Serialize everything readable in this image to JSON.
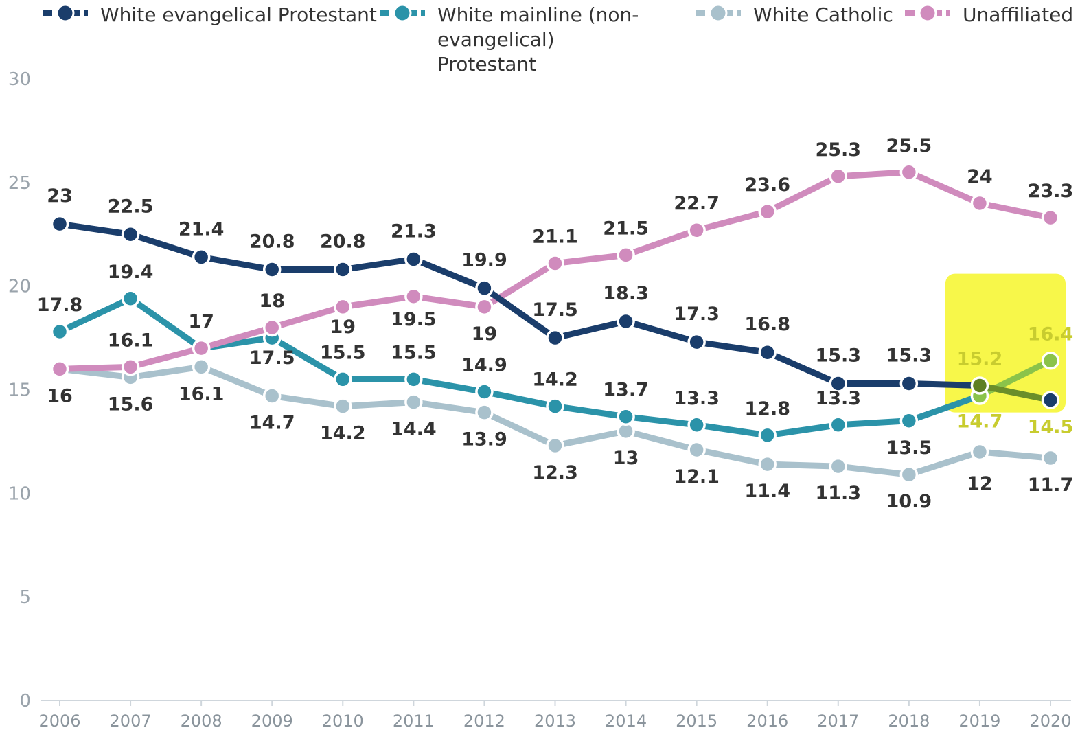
{
  "chart_data": {
    "type": "line",
    "x": [
      "2006",
      "2007",
      "2008",
      "2009",
      "2010",
      "2011",
      "2012",
      "2013",
      "2014",
      "2015",
      "2016",
      "2017",
      "2018",
      "2019",
      "2020"
    ],
    "ylim": [
      0,
      30
    ],
    "yticks": [
      "0",
      "5",
      "10",
      "15",
      "20",
      "25",
      "30"
    ],
    "grid": false,
    "legend_position": "top",
    "series": [
      {
        "name": "White evangelical Protestant",
        "color": "#1a3d6b",
        "values": [
          23,
          22.5,
          21.4,
          20.8,
          20.8,
          21.3,
          19.9,
          17.5,
          18.3,
          17.3,
          16.8,
          15.3,
          15.3,
          15.2,
          14.5
        ],
        "labels": [
          "23",
          "22.5",
          "21.4",
          "20.8",
          "20.8",
          "21.3",
          "19.9",
          "17.5",
          "18.3",
          "17.3",
          "16.8",
          "15.3",
          "15.3",
          "15.2",
          "14.5"
        ]
      },
      {
        "name": "White mainline (non-evangelical) Protestant",
        "color": "#2b93a9",
        "values": [
          17.8,
          19.4,
          17,
          17.5,
          15.5,
          15.5,
          14.9,
          14.2,
          13.7,
          13.3,
          12.8,
          13.3,
          13.5,
          14.7,
          16.4
        ],
        "labels": [
          "17.8",
          "19.4",
          "17",
          "17.5",
          "15.5",
          "15.5",
          "14.9",
          "14.2",
          "13.7",
          "13.3",
          "12.8",
          "13.3",
          "13.5",
          "14.7",
          "16.4"
        ]
      },
      {
        "name": "White Catholic",
        "color": "#a9c1cc",
        "values": [
          16,
          15.6,
          16.1,
          14.7,
          14.2,
          14.4,
          13.9,
          12.3,
          13,
          12.1,
          11.4,
          11.3,
          10.9,
          12,
          11.7
        ],
        "labels": [
          "",
          "15.6",
          "16.1",
          "14.7",
          "14.2",
          "14.4",
          "13.9",
          "12.3",
          "13",
          "12.1",
          "11.4",
          "11.3",
          "10.9",
          "12",
          "11.7"
        ]
      },
      {
        "name": "Unaffiliated",
        "color": "#d08bbd",
        "values": [
          16,
          16.1,
          17,
          18,
          19,
          19.5,
          19,
          21.1,
          21.5,
          22.7,
          23.6,
          25.3,
          25.5,
          24,
          23.3
        ],
        "labels": [
          "16",
          "16.1",
          "",
          "18",
          "19",
          "19.5",
          "19",
          "21.1",
          "21.5",
          "22.7",
          "23.6",
          "25.3",
          "25.5",
          "24",
          "23.3"
        ]
      }
    ],
    "annotations": [
      {
        "type": "highlight",
        "color": "#f7f74a",
        "x_range": [
          "2019",
          "2020"
        ]
      }
    ],
    "highlight_line_color": "#8bc34a"
  },
  "legend": {
    "items": [
      {
        "label": "White evangelical Protestant",
        "color": "#1a3d6b"
      },
      {
        "label": "White mainline (non-evangelical) Protestant",
        "color": "#2b93a9"
      },
      {
        "label": "White Catholic",
        "color": "#a9c1cc"
      },
      {
        "label": "Unaffiliated",
        "color": "#d08bbd"
      }
    ]
  }
}
